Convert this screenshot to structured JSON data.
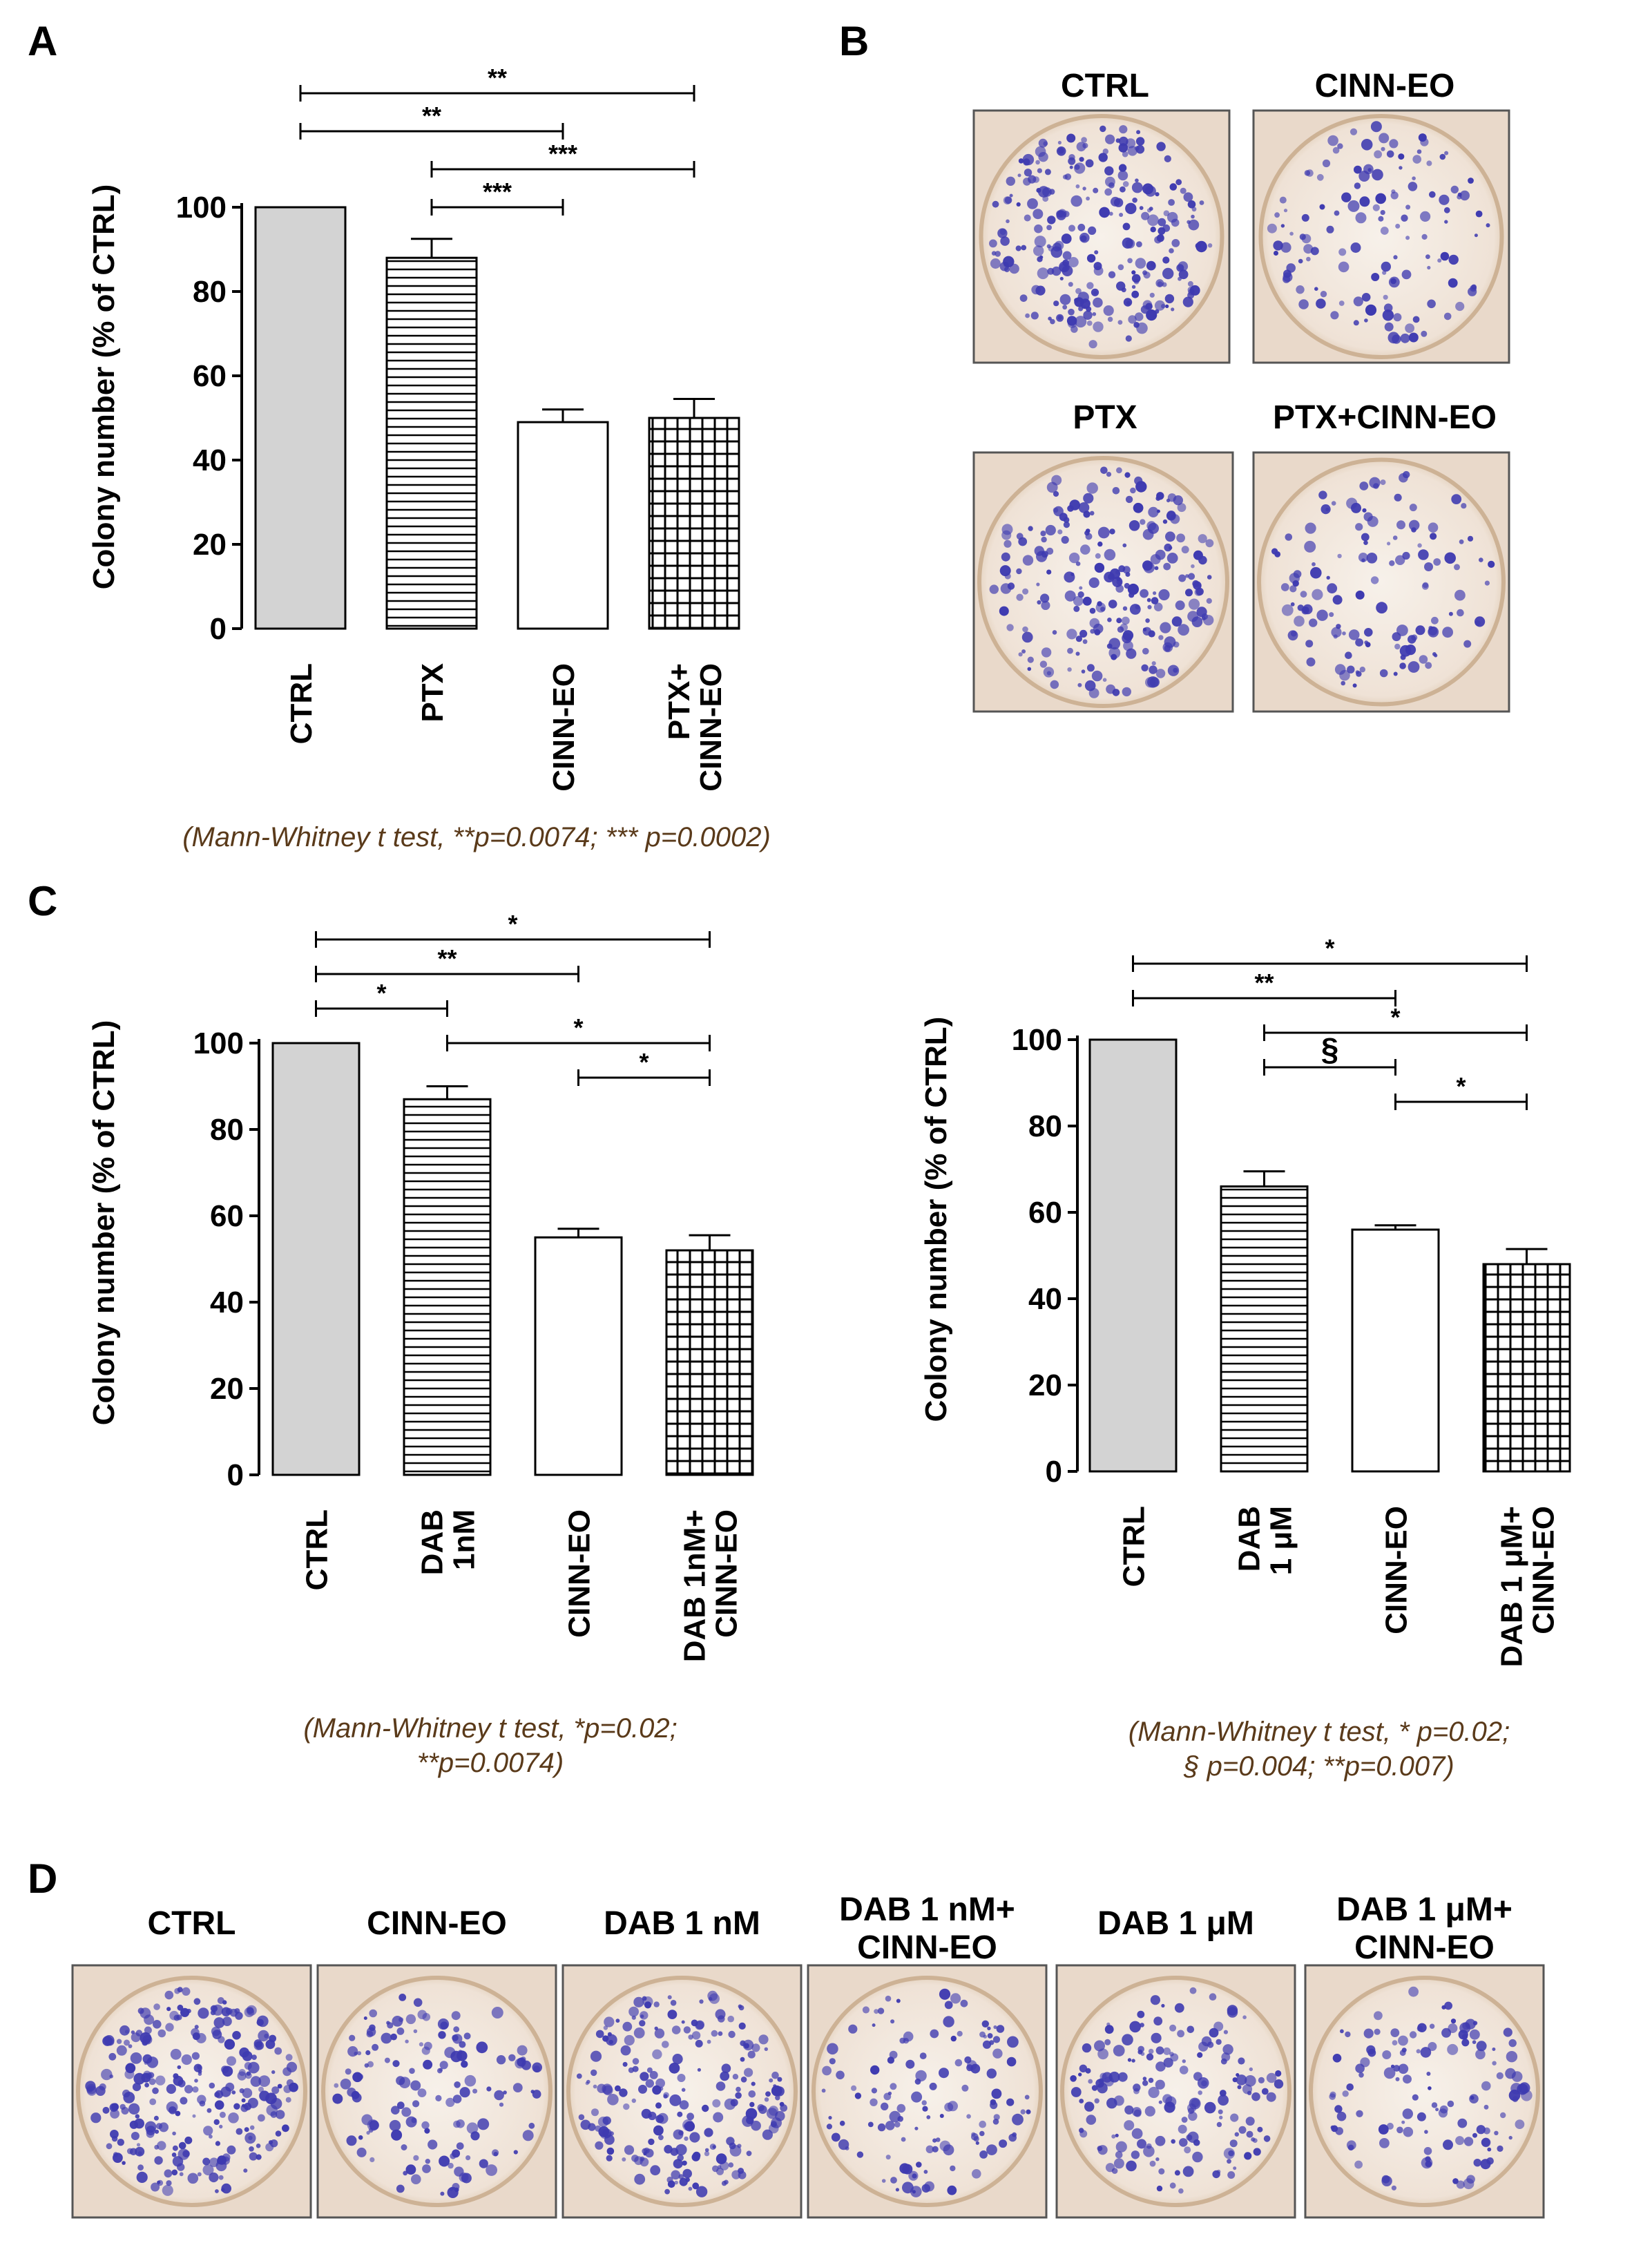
{
  "colors": {
    "ctrl_fill": "#d3d3d3",
    "pattern_stroke": "#000000",
    "caption_text": "#5a3a1a",
    "plate_bg": "#f1e4d8",
    "plate_frame": "#cdb295",
    "colony": "#3e3ab0"
  },
  "panel_a": {
    "letter": "A",
    "caption": "(Mann-Whitney t test, **p=0.0074; *** p=0.0002)"
  },
  "panel_b": {
    "letter": "B",
    "plates": [
      {
        "label": "CTRL",
        "density": 1.0
      },
      {
        "label": "CINN-EO",
        "density": 0.5
      },
      {
        "label": "PTX",
        "density": 0.88
      },
      {
        "label": "PTX+CINN-EO",
        "density": 0.5
      }
    ]
  },
  "panel_c": {
    "letter": "C",
    "caption_left_line1": "(Mann-Whitney t test, *p=0.02;",
    "caption_left_line2": "**p=0.0074)",
    "caption_right_line1": "(Mann-Whitney t test, * p=0.02;",
    "caption_right_line2": "§ p=0.004; **p=0.007)"
  },
  "panel_d": {
    "letter": "D",
    "plates": [
      {
        "label_lines": [
          "CTRL"
        ],
        "density": 1.0
      },
      {
        "label_lines": [
          "CINN-EO"
        ],
        "density": 0.55
      },
      {
        "label_lines": [
          "DAB 1 nM"
        ],
        "density": 0.85
      },
      {
        "label_lines": [
          "DAB 1 nM+",
          "CINN-EO"
        ],
        "density": 0.5
      },
      {
        "label_lines": [
          "DAB 1 μM"
        ],
        "density": 0.66
      },
      {
        "label_lines": [
          "DAB 1 μM+",
          "CINN-EO"
        ],
        "density": 0.48
      }
    ]
  },
  "chart_data": [
    {
      "id": "A",
      "type": "bar",
      "title": "",
      "ylabel": "Colony  number (% of CTRL)",
      "xlabel": "",
      "ylim": [
        0,
        100
      ],
      "yticks": [
        "0",
        "20",
        "40",
        "60",
        "80",
        "100"
      ],
      "categories": [
        [
          "CTRL"
        ],
        [
          "PTX"
        ],
        [
          "CINN-EO"
        ],
        [
          "PTX+",
          "CINN-EO"
        ]
      ],
      "values": [
        100,
        88,
        49,
        50
      ],
      "errors": [
        0,
        4.5,
        3,
        4.5
      ],
      "patterns": [
        "solid",
        "hlines",
        "open",
        "grid"
      ],
      "significance": [
        {
          "from": 0,
          "to": 3,
          "label": "**"
        },
        {
          "from": 0,
          "to": 2,
          "label": "**"
        },
        {
          "from": 1,
          "to": 3,
          "label": "***"
        },
        {
          "from": 1,
          "to": 2,
          "label": "***"
        }
      ]
    },
    {
      "id": "C-left",
      "type": "bar",
      "title": "",
      "ylabel": "Colony  number (% of CTRL)",
      "xlabel": "",
      "ylim": [
        0,
        100
      ],
      "yticks": [
        "0",
        "20",
        "40",
        "60",
        "80",
        "100"
      ],
      "categories": [
        [
          "CTRL"
        ],
        [
          "DAB",
          "1nM"
        ],
        [
          "CINN-EO"
        ],
        [
          "DAB 1nM+",
          "CINN-EO"
        ]
      ],
      "values": [
        100,
        87,
        55,
        52
      ],
      "errors": [
        0,
        3,
        2,
        3.5
      ],
      "patterns": [
        "solid",
        "hlines",
        "open",
        "grid"
      ],
      "significance": [
        {
          "from": 0,
          "to": 3,
          "label": "*"
        },
        {
          "from": 0,
          "to": 2,
          "label": "**"
        },
        {
          "from": 0,
          "to": 1,
          "label": "*"
        },
        {
          "from": 1,
          "to": 3,
          "label": "*"
        },
        {
          "from": 2,
          "to": 3,
          "label": "*"
        }
      ]
    },
    {
      "id": "C-right",
      "type": "bar",
      "title": "",
      "ylabel": "Colony  number (% of CTRL)",
      "xlabel": "",
      "ylim": [
        0,
        100
      ],
      "yticks": [
        "0",
        "20",
        "40",
        "60",
        "80",
        "100"
      ],
      "categories": [
        [
          "CTRL"
        ],
        [
          "DAB",
          "1 μM"
        ],
        [
          "CINN-EO"
        ],
        [
          "DAB 1 μM+",
          "CINN-EO"
        ]
      ],
      "values": [
        100,
        66,
        56,
        48
      ],
      "errors": [
        0,
        3.5,
        1,
        3.5
      ],
      "patterns": [
        "solid",
        "hlines",
        "open",
        "grid"
      ],
      "significance": [
        {
          "from": 0,
          "to": 3,
          "label": "*"
        },
        {
          "from": 0,
          "to": 2,
          "label": "**"
        },
        {
          "from": 1,
          "to": 3,
          "label": "*"
        },
        {
          "from": 1,
          "to": 2,
          "label": "§"
        },
        {
          "from": 2,
          "to": 3,
          "label": "*"
        }
      ]
    }
  ]
}
